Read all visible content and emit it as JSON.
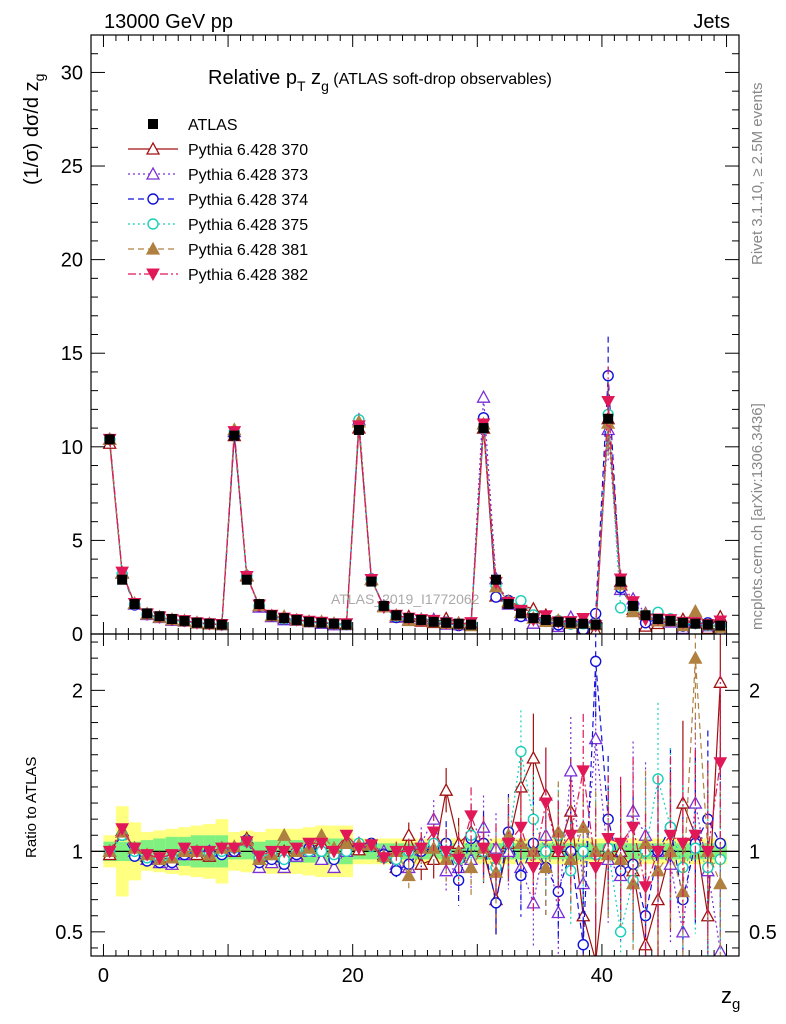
{
  "header": {
    "left": "13000 GeV pp",
    "right": "Jets"
  },
  "side_labels": {
    "rivet": "Rivet 3.1.10, ≥ 2.5M events",
    "mcplots": "mcplots.cern.ch [arXiv:1306.3436]"
  },
  "watermark": "ATLAS_2019_I1772062",
  "chart_data": {
    "type": "scatter",
    "title": "Relative pT zg (ATLAS soft-drop observables)",
    "title_parts": {
      "main": "Relative p",
      "sub1": "T",
      "mid": " z",
      "sub2": "g",
      "rest": " (ATLAS soft-drop observables)"
    },
    "ylabel": "(1/σ) dσ/d z",
    "ylabel_sub": "g",
    "xlabel": "z",
    "xlabel_sub": "g",
    "ratio_ylabel": "Ratio to ATLAS",
    "xlim": [
      -1,
      51
    ],
    "ylim": [
      0,
      32
    ],
    "ratio_ylim": [
      0.35,
      2.35
    ],
    "x_ticks": [
      "0",
      "20",
      "40"
    ],
    "y_ticks": [
      "0",
      "5",
      "10",
      "15",
      "20",
      "25",
      "30"
    ],
    "ratio_ticks": [
      "0.5",
      "1",
      "2"
    ],
    "x": [
      0.5,
      1.5,
      2.5,
      3.5,
      4.5,
      5.5,
      6.5,
      7.5,
      8.5,
      9.5,
      10.5,
      11.5,
      12.5,
      13.5,
      14.5,
      15.5,
      16.5,
      17.5,
      18.5,
      19.5,
      20.5,
      21.5,
      22.5,
      23.5,
      24.5,
      25.5,
      26.5,
      27.5,
      28.5,
      29.5,
      30.5,
      31.5,
      32.5,
      33.5,
      34.5,
      35.5,
      36.5,
      37.5,
      38.5,
      39.5,
      40.5,
      41.5,
      42.5,
      43.5,
      44.5,
      45.5,
      46.5,
      47.5,
      48.5,
      49.5
    ],
    "data": {
      "name": "ATLAS",
      "values": [
        10.4,
        2.9,
        1.6,
        1.1,
        0.95,
        0.8,
        0.7,
        0.6,
        0.55,
        0.5,
        10.6,
        2.9,
        1.6,
        1.0,
        0.85,
        0.75,
        0.65,
        0.6,
        0.55,
        0.5,
        10.9,
        2.8,
        1.5,
        1.0,
        0.85,
        0.75,
        0.65,
        0.6,
        0.55,
        0.5,
        11.0,
        2.9,
        1.6,
        1.1,
        0.85,
        0.75,
        0.65,
        0.6,
        0.55,
        0.5,
        11.5,
        2.8,
        1.5,
        1.0,
        0.8,
        0.7,
        0.6,
        0.55,
        0.5,
        0.45
      ]
    },
    "series": [
      {
        "name": "Pythia 6.428 370",
        "color": "#a01010",
        "marker": "triangle-open",
        "dash": "solid",
        "ratio": [
          0.98,
          1.13,
          1.02,
          0.97,
          0.96,
          0.95,
          1.0,
          0.98,
          0.97,
          1.02,
          1.0,
          1.08,
          0.95,
          0.97,
          1.0,
          0.98,
          1.02,
          1.05,
          1.0,
          1.06,
          1.01,
          1.04,
          0.98,
          0.9,
          1.1,
          0.92,
          0.95,
          1.38,
          1.05,
          1.12,
          1.0,
          0.7,
          1.05,
          1.4,
          1.58,
          1.35,
          1.0,
          1.25,
          0.6,
          0.32,
          1.0,
          1.0,
          0.88,
          0.42,
          0.7,
          1.0,
          1.3,
          1.1,
          0.6,
          2.05
        ]
      },
      {
        "name": "Pythia 6.428 373",
        "color": "#7b2fd6",
        "marker": "triangle-open",
        "dash": "dotted",
        "ratio": [
          1.0,
          1.12,
          1.0,
          0.95,
          0.93,
          0.92,
          0.98,
          1.0,
          1.0,
          1.0,
          1.02,
          1.07,
          0.9,
          0.93,
          0.9,
          0.97,
          1.0,
          0.95,
          0.9,
          1.0,
          1.05,
          1.04,
          1.0,
          0.92,
          0.9,
          1.05,
          1.2,
          0.88,
          0.9,
          0.95,
          1.15,
          1.02,
          1.0,
          0.9,
          0.68,
          1.1,
          0.62,
          1.5,
          0.8,
          1.7,
          0.95,
          0.85,
          1.25,
          1.1,
          1.0,
          0.92,
          0.5,
          1.3,
          0.88,
          0.38
        ]
      },
      {
        "name": "Pythia 6.428 374",
        "color": "#1010d8",
        "marker": "circle-open",
        "dash": "dashed",
        "ratio": [
          1.0,
          1.1,
          0.97,
          0.94,
          0.93,
          0.93,
          0.98,
          1.0,
          1.0,
          0.98,
          1.0,
          1.07,
          0.93,
          0.95,
          0.92,
          0.98,
          1.02,
          1.0,
          0.95,
          1.02,
          1.04,
          1.05,
          0.98,
          0.88,
          0.92,
          1.0,
          1.02,
          1.05,
          0.82,
          1.08,
          1.05,
          0.68,
          1.12,
          0.85,
          1.05,
          0.9,
          0.75,
          1.0,
          0.42,
          2.18,
          1.2,
          0.88,
          0.92,
          0.6,
          1.0,
          1.15,
          0.7,
          1.05,
          1.2,
          1.05
        ]
      },
      {
        "name": "Pythia 6.428 375",
        "color": "#18d0b8",
        "marker": "circle-open",
        "dash": "dotted",
        "ratio": [
          1.0,
          1.1,
          1.0,
          0.96,
          0.95,
          0.96,
          1.0,
          1.0,
          0.98,
          1.0,
          1.02,
          1.06,
          0.96,
          0.98,
          0.95,
          1.0,
          1.0,
          1.0,
          0.98,
          1.0,
          1.05,
          1.03,
          0.96,
          0.95,
          1.0,
          1.02,
          1.05,
          1.0,
          0.95,
          1.1,
          1.0,
          0.9,
          1.05,
          1.62,
          1.2,
          1.0,
          1.1,
          0.88,
          1.0,
          0.98,
          1.02,
          0.5,
          0.82,
          1.0,
          1.45,
          1.15,
          0.9,
          1.02,
          0.9,
          0.95
        ]
      },
      {
        "name": "Pythia 6.428 381",
        "color": "#b08040",
        "marker": "triangle-filled",
        "dash": "dashed",
        "ratio": [
          1.0,
          1.12,
          1.02,
          0.98,
          0.95,
          0.96,
          1.0,
          1.0,
          0.98,
          1.02,
          1.03,
          1.07,
          0.95,
          0.98,
          1.1,
          1.0,
          1.02,
          1.1,
          1.02,
          1.05,
          1.04,
          1.04,
          0.97,
          1.0,
          0.85,
          1.02,
          1.02,
          0.95,
          1.0,
          0.9,
          1.02,
          0.87,
          1.1,
          1.05,
          1.0,
          0.9,
          1.12,
          0.95,
          1.15,
          1.0,
          0.98,
          0.95,
          0.8,
          1.05,
          0.88,
          1.0,
          0.75,
          2.2,
          1.0,
          0.8
        ]
      },
      {
        "name": "Pythia 6.428 382",
        "color": "#e01858",
        "marker": "triangle-down-filled",
        "dash": "dashdot",
        "ratio": [
          1.0,
          1.14,
          1.02,
          0.98,
          0.96,
          0.98,
          1.02,
          1.0,
          1.0,
          1.02,
          1.02,
          1.06,
          0.97,
          1.0,
          1.0,
          1.02,
          1.05,
          1.05,
          1.0,
          1.1,
          1.02,
          1.04,
          0.96,
          1.0,
          1.0,
          1.02,
          1.12,
          1.0,
          0.95,
          1.22,
          1.02,
          0.95,
          1.05,
          1.15,
          0.9,
          1.3,
          1.0,
          1.1,
          1.5,
          0.9,
          1.08,
          1.05,
          1.15,
          0.78,
          1.0,
          1.1,
          1.05,
          1.1,
          1.0,
          1.55
        ]
      }
    ],
    "uncertainty_band": {
      "inner": [
        0.06,
        0.06,
        0.06,
        0.07,
        0.08,
        0.09,
        0.09,
        0.1,
        0.1,
        0.1,
        0.05,
        0.05,
        0.06,
        0.07,
        0.07,
        0.07,
        0.07,
        0.08,
        0.08,
        0.08,
        0.05,
        0.05,
        0.05,
        0.05,
        0.05,
        0.05,
        0.05,
        0.05,
        0.05,
        0.05,
        0.05,
        0.05,
        0.05,
        0.05,
        0.05,
        0.05,
        0.05,
        0.05,
        0.05,
        0.05,
        0.05,
        0.05,
        0.05,
        0.05,
        0.05,
        0.05,
        0.05,
        0.05,
        0.05,
        0.05
      ],
      "outer": [
        0.1,
        0.28,
        0.18,
        0.12,
        0.13,
        0.14,
        0.15,
        0.16,
        0.17,
        0.2,
        0.12,
        0.13,
        0.12,
        0.14,
        0.14,
        0.14,
        0.15,
        0.16,
        0.16,
        0.16,
        0.08,
        0.08,
        0.08,
        0.08,
        0.08,
        0.08,
        0.08,
        0.08,
        0.08,
        0.08,
        0.08,
        0.08,
        0.08,
        0.08,
        0.08,
        0.08,
        0.08,
        0.08,
        0.08,
        0.08,
        0.08,
        0.08,
        0.08,
        0.08,
        0.08,
        0.08,
        0.08,
        0.08,
        0.08,
        0.08
      ]
    }
  }
}
